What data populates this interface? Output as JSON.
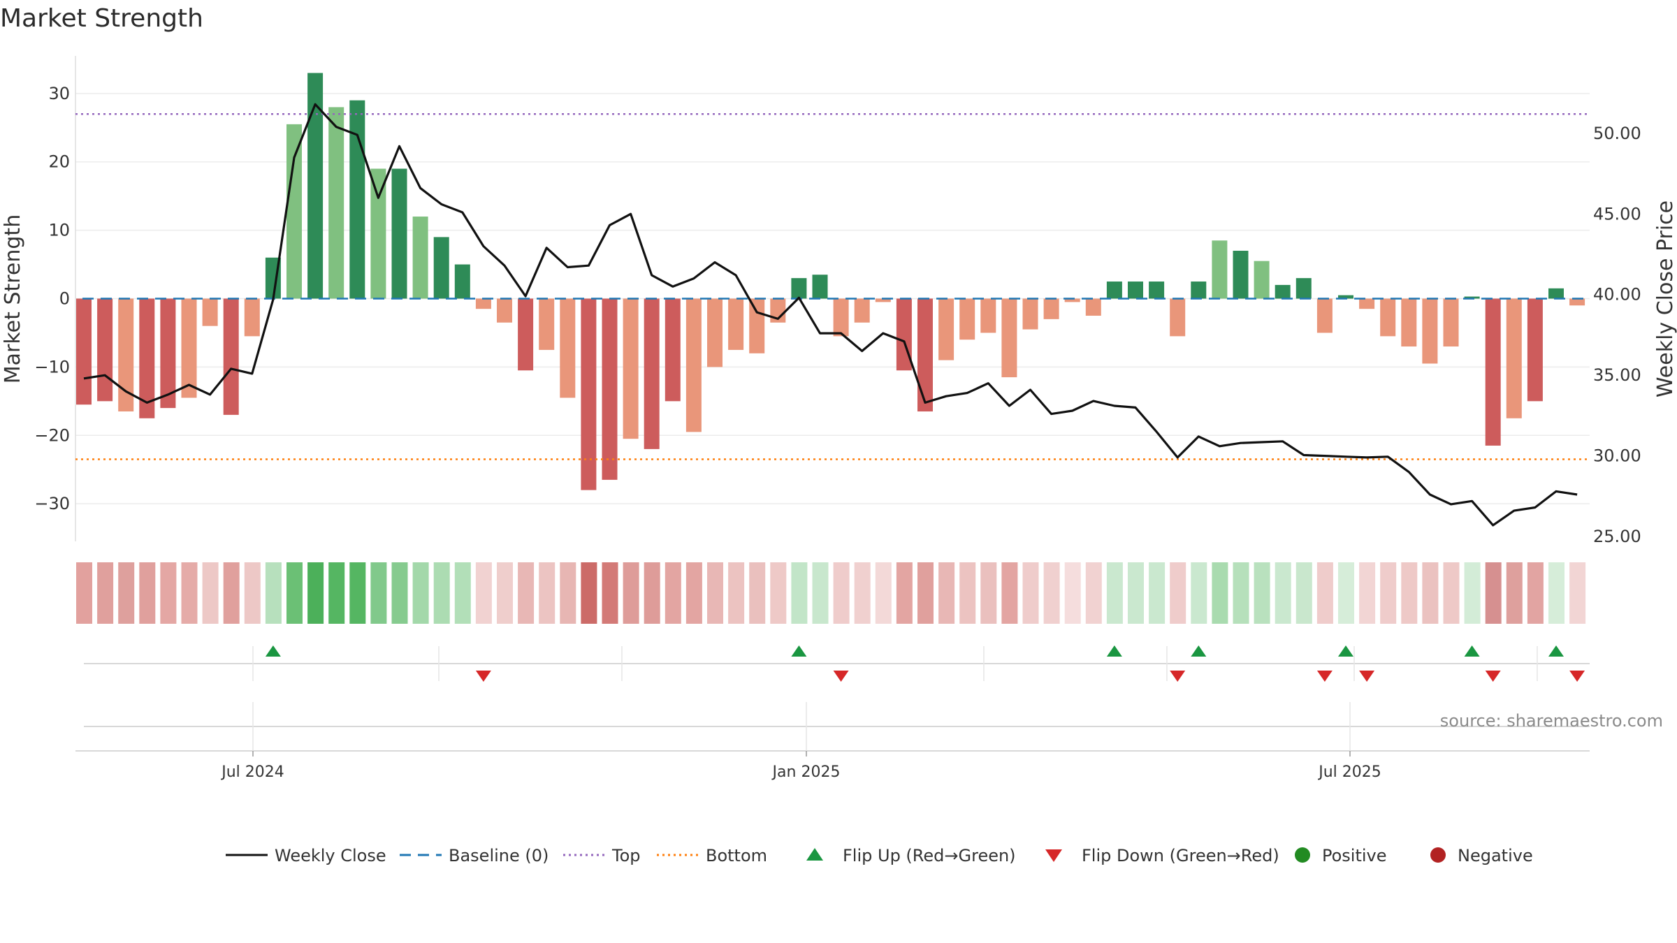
{
  "chart_data": {
    "type": "bar",
    "title": "Market Strength",
    "ylabel_left": "Market Strength",
    "ylabel_right": "Weekly Close Price",
    "left_ticks": [
      30,
      20,
      10,
      0,
      -10,
      -20,
      -30
    ],
    "left_tick_labels": [
      "30",
      "20",
      "10",
      "0",
      "−10",
      "−20",
      "−30"
    ],
    "right_ticks": [
      50,
      45,
      40,
      35,
      30,
      25
    ],
    "right_tick_labels": [
      "50.00",
      "45.00",
      "40.00",
      "35.00",
      "30.00",
      "25.00"
    ],
    "ylim_left": [
      -35.5,
      35.5
    ],
    "ylim_right": [
      24.7,
      54.8
    ],
    "x_tick_labels": [
      "Jul 2024",
      "Jan 2025",
      "Jul 2025"
    ],
    "top_line": 27,
    "bottom_line": -23.5,
    "baseline": 0,
    "strength": [
      -15.5,
      -15,
      -16.5,
      -17.5,
      -16,
      -14.5,
      -4,
      -17,
      -5.5,
      6,
      25.5,
      33,
      28,
      29,
      19,
      19,
      12,
      9,
      5,
      -1.5,
      -3.5,
      -10.5,
      -7.5,
      -14.5,
      -28,
      -26.5,
      -20.5,
      -22,
      -15,
      -19.5,
      -10,
      -7.5,
      -8,
      -3.5,
      3,
      3.5,
      -5.5,
      -3.5,
      -0.5,
      -10.5,
      -16.5,
      -9,
      -6,
      -5,
      -11.5,
      -4.5,
      -3,
      -0.5,
      -2.5,
      2.5,
      2.5,
      2.5,
      -5.5,
      2.5,
      8.5,
      7,
      5.5,
      2,
      3,
      -5,
      0.5,
      -1.5,
      -5.5,
      -7,
      -9.5,
      -7,
      0.3,
      -21.5,
      -17.5,
      -15,
      1.5,
      -1
    ],
    "weekly_close": [
      34.8,
      35,
      34,
      33.3,
      33.8,
      34.4,
      33.8,
      35.4,
      35.1,
      39.7,
      48.5,
      51.8,
      50.4,
      49.9,
      46,
      49.2,
      46.6,
      45.6,
      45.1,
      43,
      41.8,
      39.9,
      42.9,
      41.7,
      41.8,
      44.3,
      45,
      41.2,
      40.5,
      41,
      42,
      41.2,
      38.9,
      38.5,
      39.8,
      37.6,
      37.6,
      36.5,
      37.6,
      37.1,
      33.3,
      33.7,
      33.9,
      34.5,
      33.1,
      34.1,
      32.6,
      32.8,
      33.4,
      33.1,
      33,
      31.5,
      29.9,
      31.2,
      30.6,
      30.8,
      30.85,
      30.9,
      30.05,
      30,
      29.95,
      29.9,
      29.95,
      29,
      27.6,
      27,
      27.2,
      25.7,
      26.6,
      26.8,
      27.8,
      27.6
    ],
    "heat_colors": [
      "#e2a19e",
      "#e0a09d",
      "#dea09d",
      "#e0a09d",
      "#e4a7a4",
      "#e5aba8",
      "#edc8c6",
      "#e0a09d",
      "#edc8c6",
      "#b7e0bd",
      "#6bc075",
      "#4cb05a",
      "#55b662",
      "#55b662",
      "#81c98b",
      "#86cb8f",
      "#a3d8aa",
      "#acdcb2",
      "#b2dfb8",
      "#f1d2d1",
      "#efcecc",
      "#e8b7b5",
      "#ecc4c2",
      "#e7b6b3",
      "#cc6b68",
      "#d37a77",
      "#de9c99",
      "#de9c99",
      "#e3a5a2",
      "#e3a5a2",
      "#e8b7b5",
      "#ecc3c1",
      "#eac0be",
      "#eec9c7",
      "#c2e5c8",
      "#c8e7cd",
      "#efcccb",
      "#f0d0cf",
      "#f3d9d8",
      "#e3a5a2",
      "#e0a09d",
      "#e8b7b5",
      "#ecc3c1",
      "#eac0be",
      "#e3a5a2",
      "#efcccb",
      "#f0d0cf",
      "#f5dddd",
      "#f1d2d1",
      "#cae8cf",
      "#cae8cf",
      "#cae8cf",
      "#efcccb",
      "#cae8cf",
      "#a9dbaf",
      "#b6e0bb",
      "#b9e1be",
      "#cae8cf",
      "#c9e7cd",
      "#efcccb",
      "#d6edd9",
      "#f2d5d4",
      "#efcccb",
      "#eec9c7",
      "#ebc2c0",
      "#eec9c7",
      "#d3ecd7",
      "#d69090",
      "#dea09d",
      "#e2a4a2",
      "#d6edd9",
      "#f2d5d4"
    ],
    "flip_up_indices": [
      9,
      34,
      49,
      53,
      60,
      66,
      70
    ],
    "flip_down_indices": [
      19,
      36,
      52,
      59,
      61,
      67,
      71
    ],
    "colors": {
      "bar_dark_green": "#2e8b57",
      "bar_light_green": "#80c080",
      "bar_dark_red": "#cd5c5c",
      "bar_light_red": "#e9967a",
      "weekly_close": "#111111",
      "baseline": "#1f77b4",
      "top": "#9467bd",
      "bottom": "#ff7f0e",
      "flip_up": "#1a9641",
      "flip_down": "#d62728",
      "positive": "#228b22",
      "negative": "#b22222"
    },
    "legend": [
      {
        "key": "weekly_close",
        "label": "Weekly Close"
      },
      {
        "key": "baseline",
        "label": "Baseline (0)"
      },
      {
        "key": "top",
        "label": "Top"
      },
      {
        "key": "bottom",
        "label": "Bottom"
      },
      {
        "key": "flip_up",
        "label": "Flip Up (Red→Green)"
      },
      {
        "key": "flip_down",
        "label": "Flip Down (Green→Red)"
      },
      {
        "key": "positive",
        "label": "Positive"
      },
      {
        "key": "negative",
        "label": "Negative"
      }
    ],
    "legend_placement": "bottom",
    "source": "source: sharemaestro.com"
  }
}
